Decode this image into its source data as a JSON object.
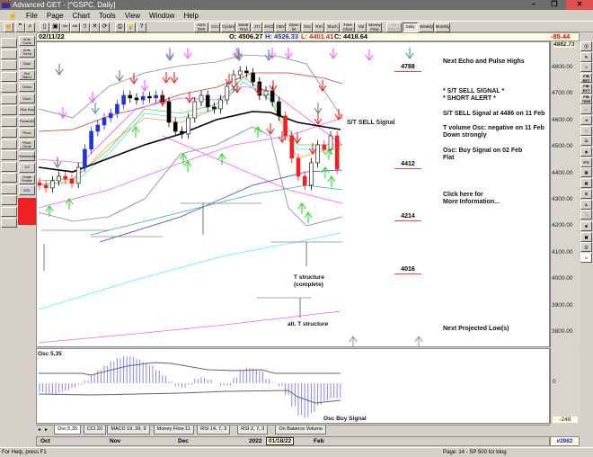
{
  "window": {
    "title": "Advanced GET - [^GSPC, Daily]",
    "minimize": "–",
    "restore": "❐",
    "close": "✕"
  },
  "menu": [
    "File",
    "Page",
    "Chart",
    "Tools",
    "View",
    "Window",
    "Help"
  ],
  "toolbar": {
    "icons": [
      "hand-icon",
      "quote-icon",
      "search-icon",
      "new-icon",
      "save-icon",
      "back-icon",
      "forward-icon",
      "update-icon",
      "close-chart-icon",
      "refresh-icon",
      "print-icon",
      "tip-icon",
      "help-icon"
    ],
    "studies": [
      "ADX DMI",
      "CCI",
      "Cycles",
      "Elliott Trnd",
      "JTI",
      "MACD",
      "OBV",
      "Open Int",
      "Osc",
      "RSI",
      "Stoch",
      "Time Chart",
      "Vol",
      "Money Flow"
    ],
    "periods": [
      {
        "label": "60 Minute",
        "state": "disabled"
      },
      {
        "label": "Daily",
        "state": "pressed"
      },
      {
        "label": "Weekly",
        "state": "normal"
      },
      {
        "label": "Monthly",
        "state": "normal"
      }
    ]
  },
  "info": {
    "date": "02/11/22",
    "open": "O: 4506.27",
    "high": "H: 4526.33",
    "low": "L: 4401.41",
    "close": "C: 4418.64",
    "change": "-85.44"
  },
  "left_tools_1": [
    "hand-icon",
    "bull-icon",
    "candle-icon",
    "line-icon",
    "ellipse-icon",
    "arrow-up-icon",
    "arrow-down-icon",
    "arrow-left-icon",
    "arrow-right-icon",
    "zoom-bars-icon",
    "expand-icon",
    "compress-icon",
    "blank-icon",
    "line-1-icon",
    "line-2-icon",
    "fib-icon",
    "cross-icon"
  ],
  "left_tools_2": [
    "Auto Cons",
    "Auto Trend",
    "Bias",
    "Bol Band",
    "Delta",
    "Dsch",
    "Mov Avg",
    "Parabolic",
    "Pivot",
    "Price Clust",
    "Seasonals",
    "1/2",
    "Trade Profile",
    "XTL"
  ],
  "right_tools": [
    "ⓧ",
    "✎",
    "≈",
    "FIB RET",
    "FIB EXT",
    "FIB TIME",
    "∩",
    "⋖",
    "□",
    "⬭",
    "◈",
    "PTI",
    "▥",
    "▤",
    "①",
    "A",
    "🔍",
    "✱",
    "▦",
    "◫",
    "U"
  ],
  "price_axis": {
    "top_label": "4882.73",
    "ticks": [
      "4800.00",
      "4700.00",
      "4600.00",
      "4500.00",
      "4400.00",
      "4300.00",
      "4200.00",
      "4100.00",
      "4000.00",
      "3900.00",
      "3800.00"
    ]
  },
  "notes": {
    "next_echo": "Next Echo and Pulse Highs",
    "sell_signal": "* S/T SELL SIGNAL *",
    "short_alert": "* SHORT ALERT *",
    "sell_at": "S/T SELL Signal at 4486 on 11 Feb",
    "tvol1": "T volume Osc: negative on 11 Feb",
    "tvol2": "Down strongly",
    "osc1": "Osc: Buy Signal on 02 Feb",
    "osc2": "Flat",
    "click1": "Click here for",
    "click2": "More Information...",
    "next_low": "Next Projected Low(s)",
    "st_sell": "S/T SELL Signal",
    "t_struct": "T structure",
    "t_complete": "(complete)",
    "alt_t": "alt. T structure",
    "osc_buy": "Osc Buy Signal"
  },
  "projections": [
    "4788",
    "4412",
    "4214",
    "4016"
  ],
  "chart_data": {
    "type": "candlestick",
    "symbol": "^GSPC",
    "interval": "Daily",
    "ylim": [
      3750,
      4880
    ],
    "closes_approx": [
      4358,
      4348,
      4375,
      4392,
      4382,
      4365,
      4426,
      4494,
      4562,
      4586,
      4613,
      4630,
      4664,
      4698,
      4688,
      4681,
      4694,
      4688,
      4698,
      4674,
      4596,
      4562,
      4552,
      4613,
      4674,
      4698,
      4654,
      4647,
      4681,
      4732,
      4776,
      4790,
      4783,
      4749,
      4698,
      4715,
      4674,
      4620,
      4545,
      4460,
      4392,
      4358,
      4443,
      4511,
      4494,
      4545,
      4418.64
    ],
    "oscillator": {
      "name": "Osc 5,35",
      "axis_labels": [
        "0",
        "-248"
      ],
      "values_approx": [
        -60,
        -70,
        -75,
        -65,
        -50,
        -30,
        -10,
        20,
        60,
        90,
        120,
        150,
        170,
        185,
        180,
        165,
        145,
        120,
        90,
        50,
        10,
        -20,
        -30,
        -10,
        30,
        40,
        25,
        0,
        -15,
        -15,
        40,
        90,
        105,
        100,
        80,
        30,
        5,
        -20,
        -80,
        -160,
        -220,
        -235,
        -200,
        -150,
        -120,
        -100,
        -100
      ]
    }
  },
  "tabs": [
    "Osc 5,35",
    "CCI 20",
    "MACD 19, 39, 9",
    "Money Flow 11",
    "RSI 14, 7, 3",
    "RSI 2, 7, 3",
    "On Balance Volume"
  ],
  "datebar": {
    "labels": [
      "Oct",
      "Nov",
      "Dec",
      "2022",
      "Feb"
    ],
    "cursor_date": "01/18/22",
    "bar_count": "#2982"
  },
  "status": {
    "left": "For Help, press F1",
    "right": "Page: 14 - SP 500 for blog"
  },
  "colors": {
    "up_arrow": "#22dd22",
    "down_arrow": "#ee2222",
    "echo_arrow": "#449999",
    "pulse_arrow": "#ff55ff",
    "ma_black": "#000000",
    "osc_hist": "#8888ee"
  }
}
